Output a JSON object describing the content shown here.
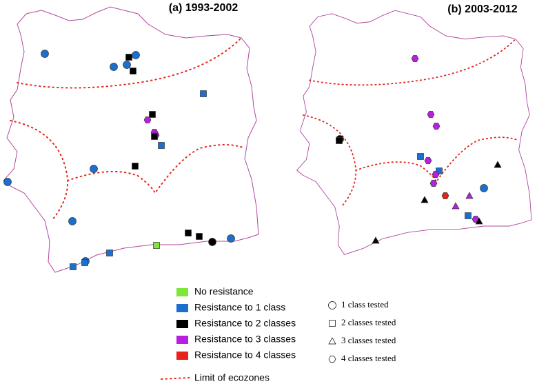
{
  "panels": [
    {
      "title": "(a) 1993-2002"
    },
    {
      "title": "(b) 2003-2012"
    }
  ],
  "legend": {
    "colors": [
      "No resistance",
      "Resistance to 1 class",
      "Resistance to 2 classes",
      "Resistance to 3 classes",
      "Resistance to 4 classes"
    ],
    "shapes": [
      "1 class tested",
      "2 classes tested",
      "3 classes tested",
      "4 classes tested"
    ],
    "line": "Limit of ecozones"
  }
}
